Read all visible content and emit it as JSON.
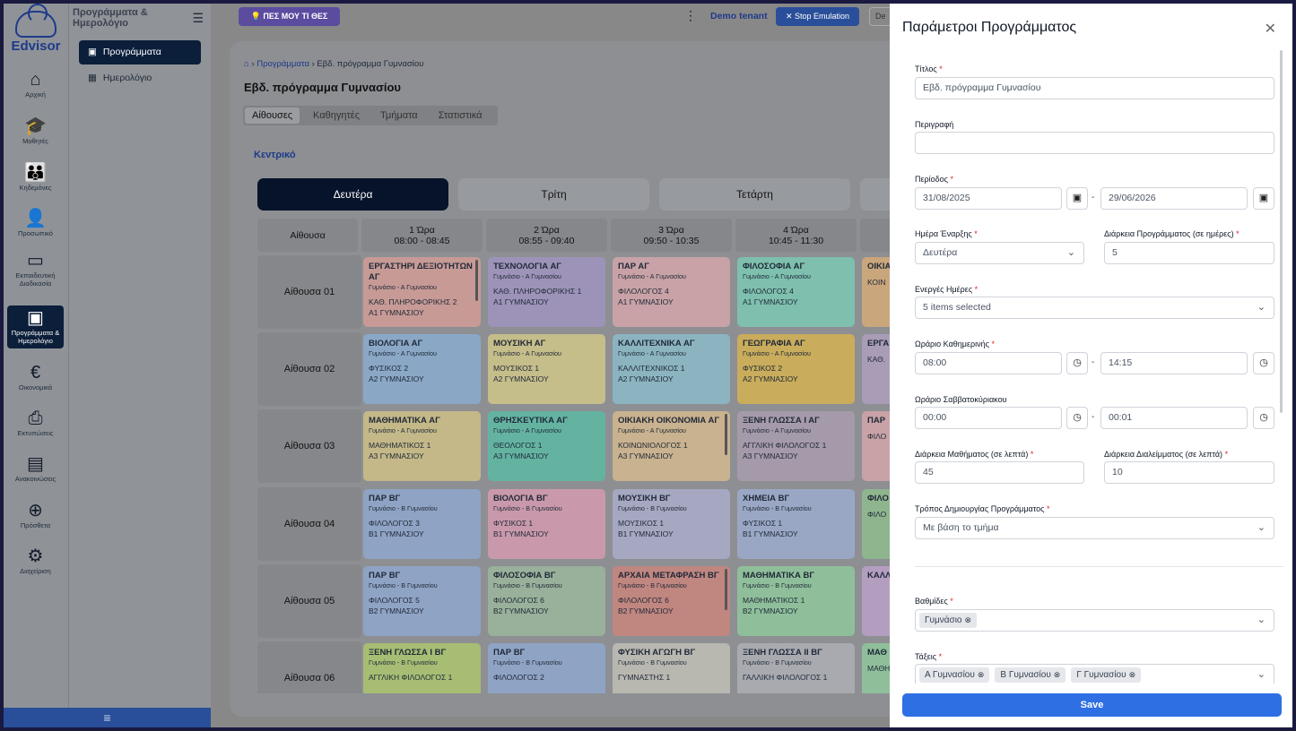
{
  "app": {
    "logo_text": "Edvisor"
  },
  "rail": [
    {
      "label": "Αρχική",
      "icon": "home-icon"
    },
    {
      "label": "Μαθητές",
      "icon": "graduation-cap-icon"
    },
    {
      "label": "Κηδεμόνες",
      "icon": "family-icon"
    },
    {
      "label": "Προσωπικό",
      "icon": "staff-icon"
    },
    {
      "label": "Εκπαιδευτική Διαδικασία",
      "icon": "teacher-board-icon"
    },
    {
      "label": "Προγράμματα & Ημερολόγιο",
      "icon": "calendar-icon",
      "active": true
    },
    {
      "label": "Οικονομικά",
      "icon": "euro-icon"
    },
    {
      "label": "Εκτυπώσεις",
      "icon": "printer-icon"
    },
    {
      "label": "Ανακοινώσεις",
      "icon": "newspaper-icon"
    },
    {
      "label": "Πρόσθετα",
      "icon": "plus-circle-icon"
    },
    {
      "label": "Διαχείριση",
      "icon": "gears-icon"
    }
  ],
  "subnav": {
    "header": "Προγράμματα & Ημερολόγιο",
    "items": [
      {
        "label": "Προγράμματα",
        "active": true
      },
      {
        "label": "Ημερολόγιο"
      }
    ]
  },
  "topbar": {
    "ask_label": "ΠΕΣ ΜΟΥ ΤΙ ΘΕΣ",
    "tenant": "Demo tenant",
    "stop_label": "Stop Emulation",
    "de_label": "De"
  },
  "breadcrumb": {
    "link": "Προγράμματα",
    "current": "Εβδ. πρόγραμμα Γυμνασίου"
  },
  "page_title": "Εβδ. πρόγραμμα Γυμνασίου",
  "tabs": [
    "Αίθουσες",
    "Καθηγητές",
    "Τμήματα",
    "Στατιστικά"
  ],
  "section_label": "Κεντρικό",
  "days": [
    "Δευτέρα",
    "Τρίτη",
    "Τετάρτη"
  ],
  "grid": {
    "corner": "Αίθουσα",
    "hours": [
      {
        "name": "1 Ώρα",
        "time": "08:00 - 08:45"
      },
      {
        "name": "2 Ώρα",
        "time": "08:55 - 09:40"
      },
      {
        "name": "3 Ώρα",
        "time": "09:50 - 10:35"
      },
      {
        "name": "4 Ώρα",
        "time": "10:45 - 11:30"
      }
    ],
    "rows": [
      {
        "room": "Αίθουσα 01",
        "cells": [
          {
            "title": "ΕΡΓΑΣΤΗΡΙ ΔΕΞΙΟΤΗΤΩΝ ΑΓ",
            "sub": "Γυμνάσιο - Α Γυμνασίου",
            "teacher": "ΚΑΘ. ΠΛΗΡΟΦΟΡΙΚΗΣ 2",
            "class": "Α1 ΓΥΜΝΑΣΙΟΥ",
            "color": "#c79a96",
            "bar": true
          },
          {
            "title": "ΤΕΧΝΟΛΟΓΙΑ ΑΓ",
            "sub": "Γυμνάσιο - Α Γυμνασίου",
            "teacher": "ΚΑΘ. ΠΛΗΡΟΦΟΡΙΚΗΣ 1",
            "class": "Α1 ΓΥΜΝΑΣΙΟΥ",
            "color": "#9d93b8"
          },
          {
            "title": "ΠΑΡ ΑΓ",
            "sub": "Γυμνάσιο - Α Γυμνασίου",
            "teacher": "ΦΙΛΟΛΟΓΟΣ 4",
            "class": "Α1 ΓΥΜΝΑΣΙΟΥ",
            "color": "#c8a2a6"
          },
          {
            "title": "ΦΙΛΟΣΟΦΙΑ ΑΓ",
            "sub": "Γυμνάσιο - Α Γυμνασίου",
            "teacher": "ΦΙΛΟΛΟΓΟΣ 4",
            "class": "Α1 ΓΥΜΝΑΣΙΟΥ",
            "color": "#7ebfae"
          },
          {
            "title": "ΟΙΚΙΑ ΑΓ",
            "sub": "",
            "teacher": "ΚΟΙΝ",
            "class": "",
            "color": "#c9a67c"
          }
        ]
      },
      {
        "room": "Αίθουσα 02",
        "cells": [
          {
            "title": "ΒΙΟΛΟΓΙΑ ΑΓ",
            "sub": "Γυμνάσιο - Α Γυμνασίου",
            "teacher": "ΦΥΣΙΚΟΣ 2",
            "class": "Α2 ΓΥΜΝΑΣΙΟΥ",
            "color": "#8aa8c6"
          },
          {
            "title": "ΜΟΥΣΙΚΗ ΑΓ",
            "sub": "Γυμνάσιο - Α Γυμνασίου",
            "teacher": "ΜΟΥΣΙΚΟΣ 1",
            "class": "Α2 ΓΥΜΝΑΣΙΟΥ",
            "color": "#c5bd8a"
          },
          {
            "title": "ΚΑΛΛΙΤΕΧΝΙΚΑ ΑΓ",
            "sub": "Γυμνάσιο - Α Γυμνασίου",
            "teacher": "ΚΑΛΛΙΤΕΧΝΙΚΟΣ 1",
            "class": "Α2 ΓΥΜΝΑΣΙΟΥ",
            "color": "#8bb4c0"
          },
          {
            "title": "ΓΕΩΓΡΑΦΙΑ ΑΓ",
            "sub": "Γυμνάσιο - Α Γυμνασίου",
            "teacher": "ΦΥΣΙΚΟΣ 2",
            "class": "Α2 ΓΥΜΝΑΣΙΟΥ",
            "color": "#c9ac5c"
          },
          {
            "title": "ΕΡΓΑ ΔΕΞΙ",
            "sub": "",
            "teacher": "ΚΑΘ.",
            "class": "",
            "color": "#a99cb7"
          }
        ]
      },
      {
        "room": "Αίθουσα 03",
        "cells": [
          {
            "title": "ΜΑΘΗΜΑΤΙΚΑ ΑΓ",
            "sub": "Γυμνάσιο - Α Γυμνασίου",
            "teacher": "ΜΑΘΗΜΑΤΙΚΟΣ 1",
            "class": "Α3 ΓΥΜΝΑΣΙΟΥ",
            "color": "#c4b889"
          },
          {
            "title": "ΘΡΗΣΚΕΥΤΙΚΑ ΑΓ",
            "sub": "Γυμνάσιο - Α Γυμνασίου",
            "teacher": "ΘΕΟΛΟΓΟΣ 1",
            "class": "Α3 ΓΥΜΝΑΣΙΟΥ",
            "color": "#64b3a1"
          },
          {
            "title": "ΟΙΚΙΑΚΗ ΟΙΚΟΝΟΜΙΑ ΑΓ",
            "sub": "Γυμνάσιο - Α Γυμνασίου",
            "teacher": "ΚΟΙΝΩΝΙΟΛΟΓΟΣ 1",
            "class": "Α3 ΓΥΜΝΑΣΙΟΥ",
            "color": "#c9b28f",
            "bar": true
          },
          {
            "title": "ΞΕΝΗ ΓΛΩΣΣΑ Ι ΑΓ",
            "sub": "Γυμνάσιο - Α Γυμνασίου",
            "teacher": "ΑΓΓΛΙΚΗ ΦΙΛΟΛΟΓΟΣ 1",
            "class": "Α3 ΓΥΜΝΑΣΙΟΥ",
            "color": "#a59aaa"
          },
          {
            "title": "ΠΑΡ",
            "sub": "",
            "teacher": "ΦΙΛΟ",
            "class": "",
            "color": "#c8a2a6"
          }
        ]
      },
      {
        "room": "Αίθουσα 04",
        "cells": [
          {
            "title": "ΠΑΡ ΒΓ",
            "sub": "Γυμνάσιο - Β Γυμνασίου",
            "teacher": "ΦΙΛΟΛΟΓΟΣ 3",
            "class": "Β1 ΓΥΜΝΑΣΙΟΥ",
            "color": "#8fa3c4"
          },
          {
            "title": "ΒΙΟΛΟΓΙΑ ΒΓ",
            "sub": "Γυμνάσιο - Β Γυμνασίου",
            "teacher": "ΦΥΣΙΚΟΣ 1",
            "class": "Β1 ΓΥΜΝΑΣΙΟΥ",
            "color": "#c999ab"
          },
          {
            "title": "ΜΟΥΣΙΚΗ ΒΓ",
            "sub": "Γυμνάσιο - Β Γυμνασίου",
            "teacher": "ΜΟΥΣΙΚΟΣ 1",
            "class": "Β1 ΓΥΜΝΑΣΙΟΥ",
            "color": "#a6a8c2"
          },
          {
            "title": "ΧΗΜΕΙΑ ΒΓ",
            "sub": "Γυμνάσιο - Β Γυμνασίου",
            "teacher": "ΦΥΣΙΚΟΣ 1",
            "class": "Β1 ΓΥΜΝΑΣΙΟΥ",
            "color": "#9aa7c4"
          },
          {
            "title": "ΦΙΛΟ",
            "sub": "",
            "teacher": "ΦΙΛΟ",
            "class": "",
            "color": "#8fb58f"
          }
        ]
      },
      {
        "room": "Αίθουσα 05",
        "cells": [
          {
            "title": "ΠΑΡ ΒΓ",
            "sub": "Γυμνάσιο - Β Γυμνασίου",
            "teacher": "ΦΙΛΟΛΟΓΟΣ 5",
            "class": "Β2 ΓΥΜΝΑΣΙΟΥ",
            "color": "#8fa3c4"
          },
          {
            "title": "ΦΙΛΟΣΟΦΙΑ ΒΓ",
            "sub": "Γυμνάσιο - Β Γυμνασίου",
            "teacher": "ΦΙΛΟΛΟΓΟΣ 6",
            "class": "Β2 ΓΥΜΝΑΣΙΟΥ",
            "color": "#99b09a"
          },
          {
            "title": "ΑΡΧΑΙΑ ΜΕΤΑΦΡΑΣΗ ΒΓ",
            "sub": "Γυμνάσιο - Β Γυμνασίου",
            "teacher": "ΦΙΛΟΛΟΓΟΣ 6",
            "class": "Β2 ΓΥΜΝΑΣΙΟΥ",
            "color": "#c08680",
            "bar": true
          },
          {
            "title": "ΜΑΘΗΜΑΤΙΚΑ ΒΓ",
            "sub": "Γυμνάσιο - Β Γυμνασίου",
            "teacher": "ΜΑΘΗΜΑΤΙΚΟΣ 1",
            "class": "Β2 ΓΥΜΝΑΣΙΟΥ",
            "color": "#8fbf9a"
          },
          {
            "title": "ΚΑΛΛ",
            "sub": "",
            "teacher": "",
            "class": "",
            "color": "#b49ec0"
          }
        ]
      },
      {
        "room": "Αίθουσα 06",
        "cells": [
          {
            "title": "ΞΕΝΗ ΓΛΩΣΣΑ Ι ΒΓ",
            "sub": "Γυμνάσιο - Β Γυμνασίου",
            "teacher": "ΑΓΓΛΙΚΗ ΦΙΛΟΛΟΓΟΣ 1",
            "class": "",
            "color": "#a7bd74"
          },
          {
            "title": "ΠΑΡ ΒΓ",
            "sub": "Γυμνάσιο - Β Γυμνασίου",
            "teacher": "ΦΙΛΟΛΟΓΟΣ 2",
            "class": "",
            "color": "#8fa3c4"
          },
          {
            "title": "ΦΥΣΙΚΗ ΑΓΩΓΗ ΒΓ",
            "sub": "Γυμνάσιο - Β Γυμνασίου",
            "teacher": "ΓΥΜΝΑΣΤΗΣ 1",
            "class": "",
            "color": "#b8b7b0"
          },
          {
            "title": "ΞΕΝΗ ΓΛΩΣΣΑ ΙΙ ΒΓ",
            "sub": "Γυμνάσιο - Β Γυμνασίου",
            "teacher": "ΓΑΛΛΙΚΗ ΦΙΛΟΛΟΓΟΣ 1",
            "class": "",
            "color": "#a8aab0"
          },
          {
            "title": "ΜΑΘ",
            "sub": "",
            "teacher": "ΜΑΘΗ",
            "class": "",
            "color": "#8fbf9a"
          }
        ]
      }
    ]
  },
  "panel": {
    "title": "Παράμετροι Προγράμματος",
    "fields": {
      "title_label": "Τίτλος",
      "title_value": "Εβδ. πρόγραμμα Γυμνασίου",
      "desc_label": "Περιγραφή",
      "desc_value": "",
      "period_label": "Περίοδος",
      "period_start": "31/08/2025",
      "period_end": "29/06/2026",
      "start_day_label": "Ημέρα Έναρξης",
      "start_day_value": "Δευτέρα",
      "duration_label": "Διάρκεια Προγράμματος (σε ημέρες)",
      "duration_value": "5",
      "active_days_label": "Ενεργές Ημέρες",
      "active_days_value": "5 items selected",
      "weekday_hours_label": "Ωράριο Καθημερινής",
      "weekday_start": "08:00",
      "weekday_end": "14:15",
      "weekend_hours_label": "Ωράριο Σαββατοκύριακου",
      "weekend_start": "00:00",
      "weekend_end": "00:01",
      "lesson_dur_label": "Διάρκεια Μαθήματος (σε λεπτά)",
      "lesson_dur_value": "45",
      "break_dur_label": "Διάρκεια Διαλείμματος (σε λεπτά)",
      "break_dur_value": "10",
      "mode_label": "Τρόπος Δημιουργίας Προγράμματος",
      "mode_value": "Με βάση το τμήμα",
      "grades_label": "Βαθμίδες",
      "grades": [
        "Γυμνάσιο"
      ],
      "classes_label": "Τάξεις",
      "classes": [
        "Α Γυμνασίου",
        "Β Γυμνασίου",
        "Γ Γυμνασίου"
      ]
    },
    "save_label": "Save"
  }
}
